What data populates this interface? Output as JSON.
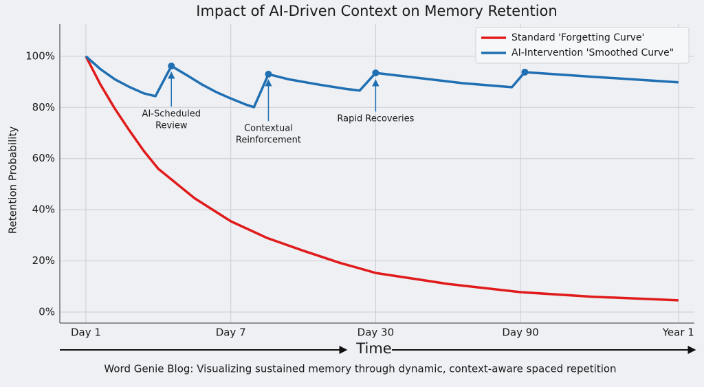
{
  "chart_data": {
    "type": "line",
    "title": "Impact of AI-Driven Context on Memory Retention",
    "y_label": "Retention Probability",
    "x_label": "Time",
    "caption": "Word Genie Blog: Visualizing sustained memory through dynamic, context-aware spaced repetition",
    "xlim": [
      -0.18,
      4.2
    ],
    "xticks": [
      {
        "value": 0,
        "label": "Day 1"
      },
      {
        "value": 1,
        "label": "Day 7"
      },
      {
        "value": 2,
        "label": "Day 30"
      },
      {
        "value": 3,
        "label": "Day 90"
      },
      {
        "value": 4.09,
        "label": "Year 1"
      }
    ],
    "ylim": [
      -4.3,
      112.6
    ],
    "yticks": [
      {
        "value": 0,
        "label": "0%"
      },
      {
        "value": 20,
        "label": "20%"
      },
      {
        "value": 40,
        "label": "40%"
      },
      {
        "value": 60,
        "label": "60%"
      },
      {
        "value": 80,
        "label": "80%"
      },
      {
        "value": 100,
        "label": "100%"
      }
    ],
    "grid": true,
    "legend": "upper right",
    "series": [
      {
        "name": "Standard 'Forgetting Curve'",
        "color": "#e01b1b",
        "x": [
          0,
          0.1,
          0.2,
          0.3,
          0.4,
          0.5,
          0.75,
          1,
          1.25,
          1.5,
          1.75,
          2,
          2.5,
          3,
          3.5,
          4.09
        ],
        "values": [
          100,
          89,
          79.5,
          71,
          63,
          56,
          44.5,
          35.5,
          29,
          24,
          19.3,
          15.3,
          11,
          7.8,
          6,
          4.6
        ]
      },
      {
        "name": "AI-Intervention 'Smoothed Curve\"",
        "color": "#1f6fb2",
        "x": [
          0,
          0.1,
          0.2,
          0.3,
          0.4,
          0.48,
          0.59,
          0.7,
          0.8,
          0.9,
          1.0,
          1.1,
          1.16,
          1.26,
          1.4,
          1.6,
          1.8,
          1.89,
          2.0,
          2.3,
          2.6,
          2.94,
          3.03,
          3.5,
          4.09
        ],
        "values": [
          100,
          95,
          91,
          88,
          85.5,
          84.4,
          96.2,
          92.5,
          89,
          86,
          83.5,
          81.2,
          80.1,
          93,
          91,
          89,
          87.2,
          86.6,
          93.5,
          91.5,
          89.5,
          87.9,
          93.8,
          92,
          89.8
        ]
      }
    ],
    "peaks": {
      "x": [
        0.59,
        1.26,
        2.0,
        3.03
      ],
      "values": [
        96.2,
        93,
        93.5,
        93.8
      ]
    },
    "annotations": [
      {
        "text": [
          "AI-Scheduled",
          "Review"
        ],
        "x": 0.59,
        "y": 93.5
      },
      {
        "text": [
          "Contextual",
          "Reinforcement"
        ],
        "x": 1.26,
        "y": 90.5
      },
      {
        "text": [
          "Rapid Recoveries"
        ],
        "x": 2.0,
        "y": 90.5
      }
    ]
  }
}
